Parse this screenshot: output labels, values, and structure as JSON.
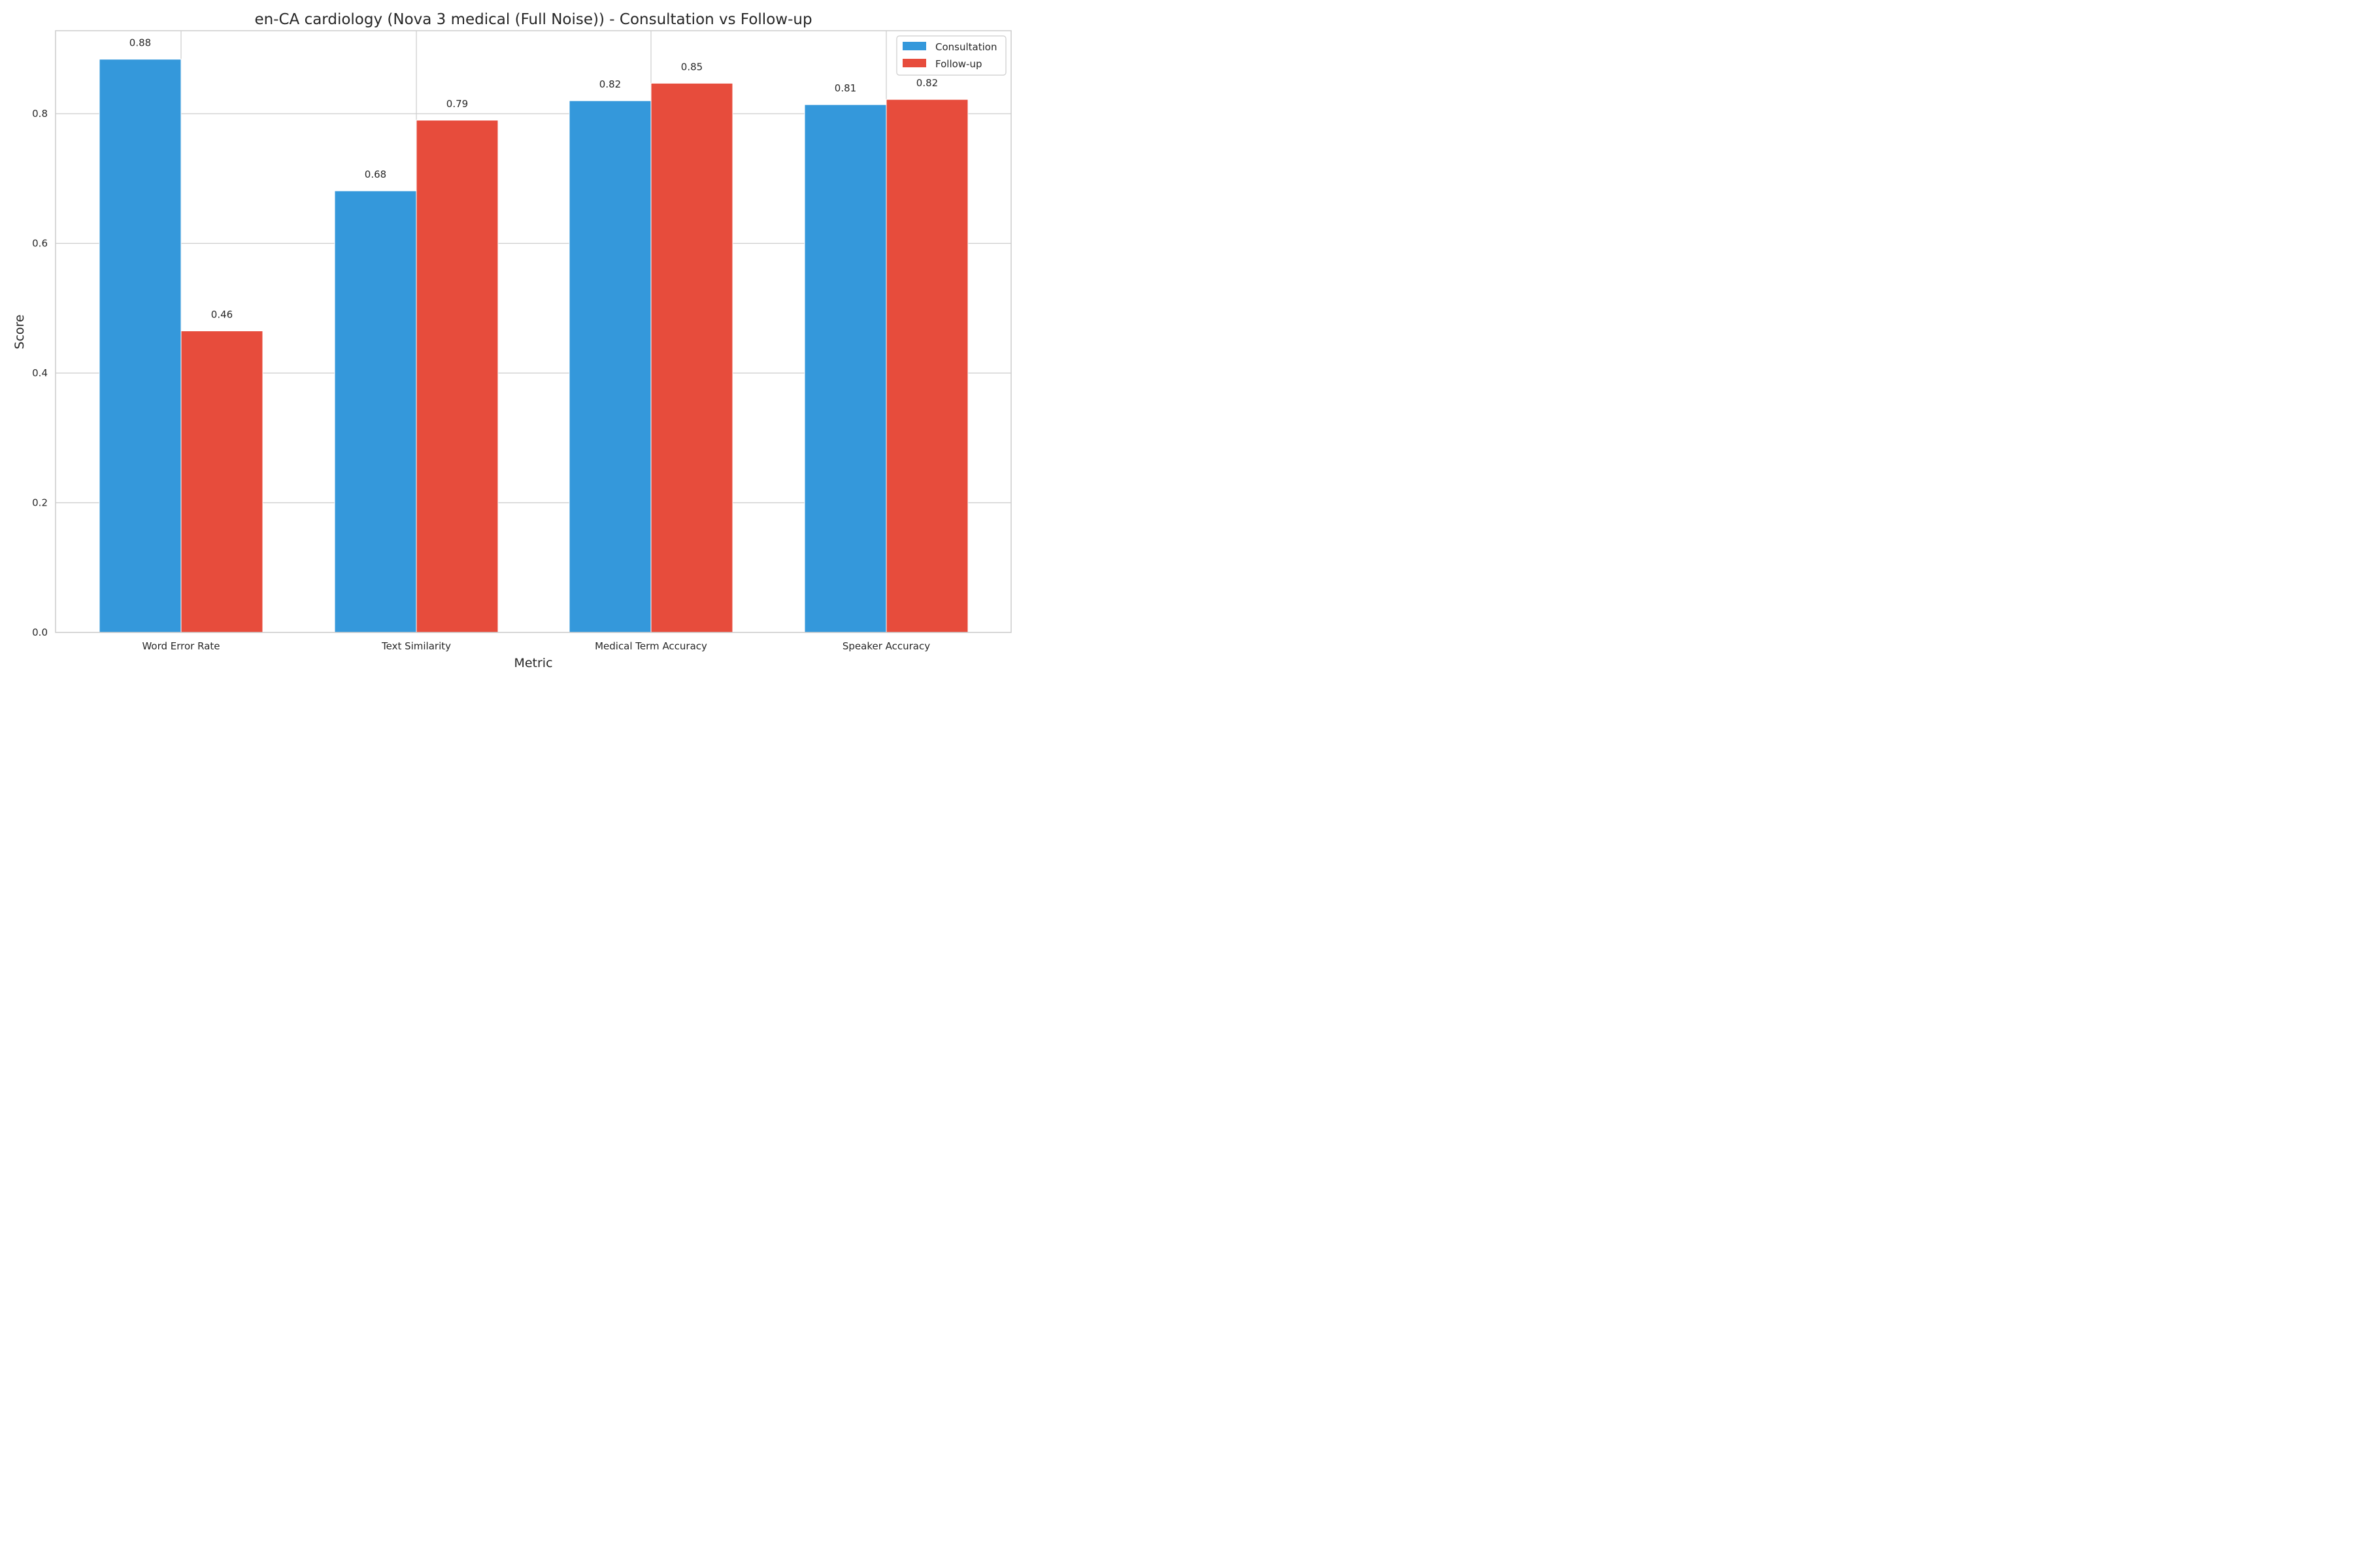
{
  "chart_data": {
    "type": "bar",
    "title": "en-CA cardiology (Nova 3 medical (Full Noise)) - Consultation vs Follow-up",
    "xlabel": "Metric",
    "ylabel": "Score",
    "categories": [
      "Word Error Rate",
      "Text Similarity",
      "Medical Term Accuracy",
      "Speaker Accuracy"
    ],
    "series": [
      {
        "name": "Consultation",
        "color": "#3498db",
        "values": [
          0.884,
          0.681,
          0.82,
          0.814
        ],
        "labels": [
          "0.88",
          "0.68",
          "0.82",
          "0.81"
        ]
      },
      {
        "name": "Follow-up",
        "color": "#e74c3c",
        "values": [
          0.465,
          0.79,
          0.847,
          0.822
        ],
        "labels": [
          "0.46",
          "0.79",
          "0.85",
          "0.82"
        ]
      }
    ],
    "ylim": [
      0,
      0.928
    ],
    "yticks": [
      0.0,
      0.2,
      0.4,
      0.6,
      0.8
    ],
    "ytick_labels": [
      "0.0",
      "0.2",
      "0.4",
      "0.6",
      "0.8"
    ],
    "grid": true,
    "legend_position": "top-right"
  }
}
